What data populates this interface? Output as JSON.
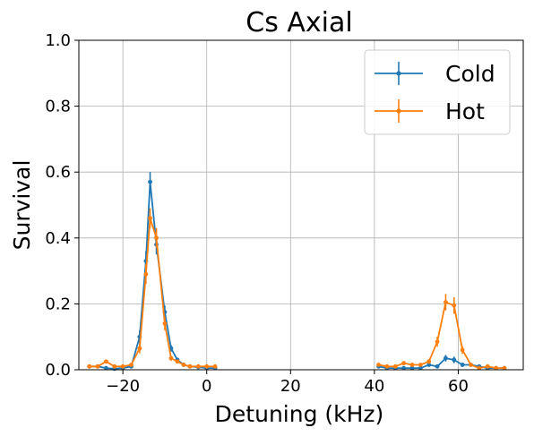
{
  "chart_data": {
    "type": "line",
    "title": "Cs Axial",
    "xlabel": "Detuning (kHz)",
    "ylabel": "Survival",
    "xlim": [
      -30.5,
      75.5
    ],
    "ylim": [
      0,
      1
    ],
    "xticks": [
      -20,
      0,
      20,
      40,
      60
    ],
    "xtick_labels": [
      "−20",
      "0",
      "20",
      "40",
      "60"
    ],
    "yticks": [
      0,
      0.2,
      0.4,
      0.6,
      0.8,
      1.0
    ],
    "ytick_labels": [
      "0.0",
      "0.2",
      "0.4",
      "0.6",
      "0.8",
      "1.0"
    ],
    "grid": true,
    "legend_position": "top-right",
    "error_bars": true,
    "series": [
      {
        "name": "Cold",
        "color": "#1f77b4",
        "segments": [
          {
            "x": [
              -28,
              -26,
              -24,
              -22,
              -20,
              -18,
              -16,
              -14.5,
              -13.5,
              -12,
              -10,
              -8.5,
              -7,
              -5.5,
              -4,
              -2,
              0,
              2
            ],
            "y": [
              0.01,
              0.01,
              0.005,
              0.003,
              0.005,
              0.01,
              0.1,
              0.33,
              0.57,
              0.38,
              0.175,
              0.065,
              0.03,
              0.015,
              0.01,
              0.008,
              0.005,
              0.005
            ],
            "err": [
              0.004,
              0.004,
              0.004,
              0.004,
              0.004,
              0.006,
              0.02,
              0.03,
              0.03,
              0.03,
              0.02,
              0.01,
              0.006,
              0.005,
              0.004,
              0.004,
              0.004,
              0.004
            ]
          },
          {
            "x": [
              41,
              43,
              45,
              47,
              49,
              51,
              53,
              55,
              57,
              59,
              61,
              63,
              65,
              67,
              69,
              71
            ],
            "y": [
              0.01,
              0.005,
              0.005,
              0.005,
              0.005,
              0.005,
              0.015,
              0.01,
              0.035,
              0.03,
              0.015,
              0.015,
              0.01,
              0.005,
              0.005,
              0.005
            ],
            "err": [
              0.005,
              0.004,
              0.004,
              0.004,
              0.004,
              0.004,
              0.006,
              0.006,
              0.01,
              0.01,
              0.006,
              0.006,
              0.005,
              0.004,
              0.004,
              0.004
            ]
          }
        ]
      },
      {
        "name": "Hot",
        "color": "#ff7f0e",
        "segments": [
          {
            "x": [
              -28,
              -26,
              -24,
              -22,
              -20,
              -18,
              -16,
              -14.5,
              -13.5,
              -12,
              -10,
              -8.5,
              -7,
              -5.5,
              -4,
              -2,
              0,
              2
            ],
            "y": [
              0.01,
              0.01,
              0.025,
              0.01,
              0.01,
              0.015,
              0.065,
              0.29,
              0.46,
              0.4,
              0.14,
              0.035,
              0.025,
              0.015,
              0.01,
              0.01,
              0.01,
              0.01
            ],
            "err": [
              0.004,
              0.004,
              0.006,
              0.004,
              0.004,
              0.005,
              0.015,
              0.03,
              0.03,
              0.03,
              0.02,
              0.008,
              0.006,
              0.005,
              0.004,
              0.004,
              0.004,
              0.004
            ]
          },
          {
            "x": [
              41,
              43,
              45,
              47,
              49,
              51,
              53,
              55,
              57,
              59,
              61,
              63,
              65,
              67,
              69,
              71
            ],
            "y": [
              0.015,
              0.01,
              0.01,
              0.02,
              0.015,
              0.015,
              0.025,
              0.085,
              0.205,
              0.195,
              0.06,
              0.015,
              0.005,
              0.01,
              0.005,
              0.005
            ],
            "err": [
              0.005,
              0.004,
              0.004,
              0.006,
              0.005,
              0.005,
              0.007,
              0.015,
              0.025,
              0.025,
              0.012,
              0.005,
              0.004,
              0.004,
              0.004,
              0.004
            ]
          }
        ]
      }
    ]
  }
}
